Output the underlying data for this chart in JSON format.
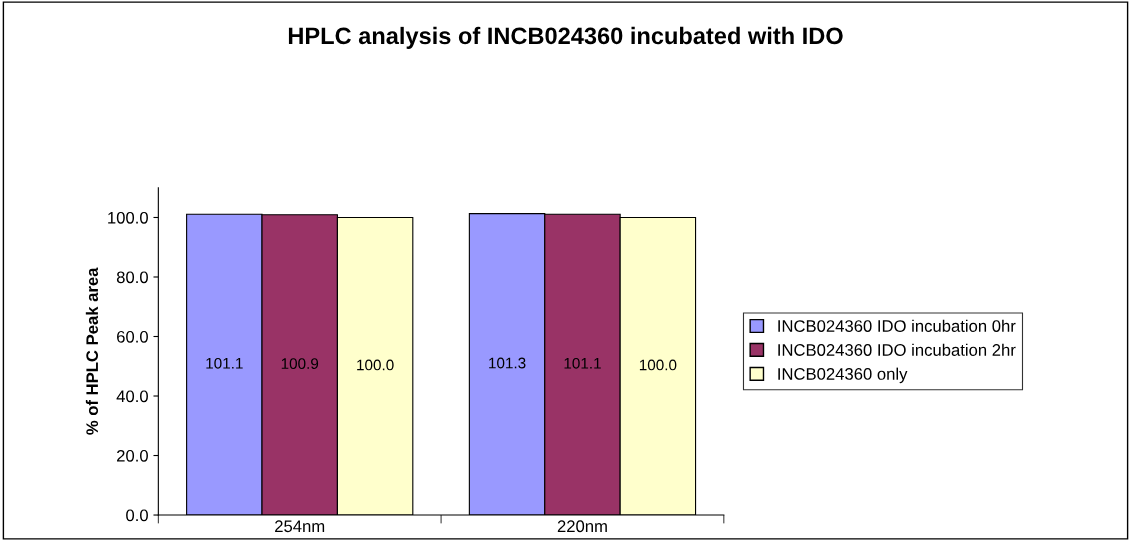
{
  "chart_data": {
    "type": "bar",
    "title": "HPLC analysis of INCB024360 incubated with IDO",
    "ylabel": "% of HPLC Peak area",
    "categories": [
      "254nm",
      "220nm"
    ],
    "series": [
      {
        "name": "INCB024360 IDO incubation 0hr",
        "color": "#9999ff",
        "values": [
          101.1,
          101.3
        ],
        "value_labels": [
          "101.1",
          "101.3"
        ]
      },
      {
        "name": "INCB024360 IDO incubation 2hr",
        "color": "#993366",
        "values": [
          100.9,
          101.1
        ],
        "value_labels": [
          "100.9",
          "101.1"
        ]
      },
      {
        "name": "INCB024360 only",
        "color": "#ffffcc",
        "values": [
          100.0,
          100.0
        ],
        "value_labels": [
          "100.0",
          "100.0"
        ]
      }
    ],
    "ylim": [
      0,
      110
    ],
    "yticks": [
      {
        "value": 0,
        "label": "0.0"
      },
      {
        "value": 20,
        "label": "20.0"
      },
      {
        "value": 40,
        "label": "40.0"
      },
      {
        "value": 60,
        "label": "60.0"
      },
      {
        "value": 80,
        "label": "80.0"
      },
      {
        "value": 100,
        "label": "100.0"
      }
    ],
    "grid": false,
    "legend": "right"
  }
}
